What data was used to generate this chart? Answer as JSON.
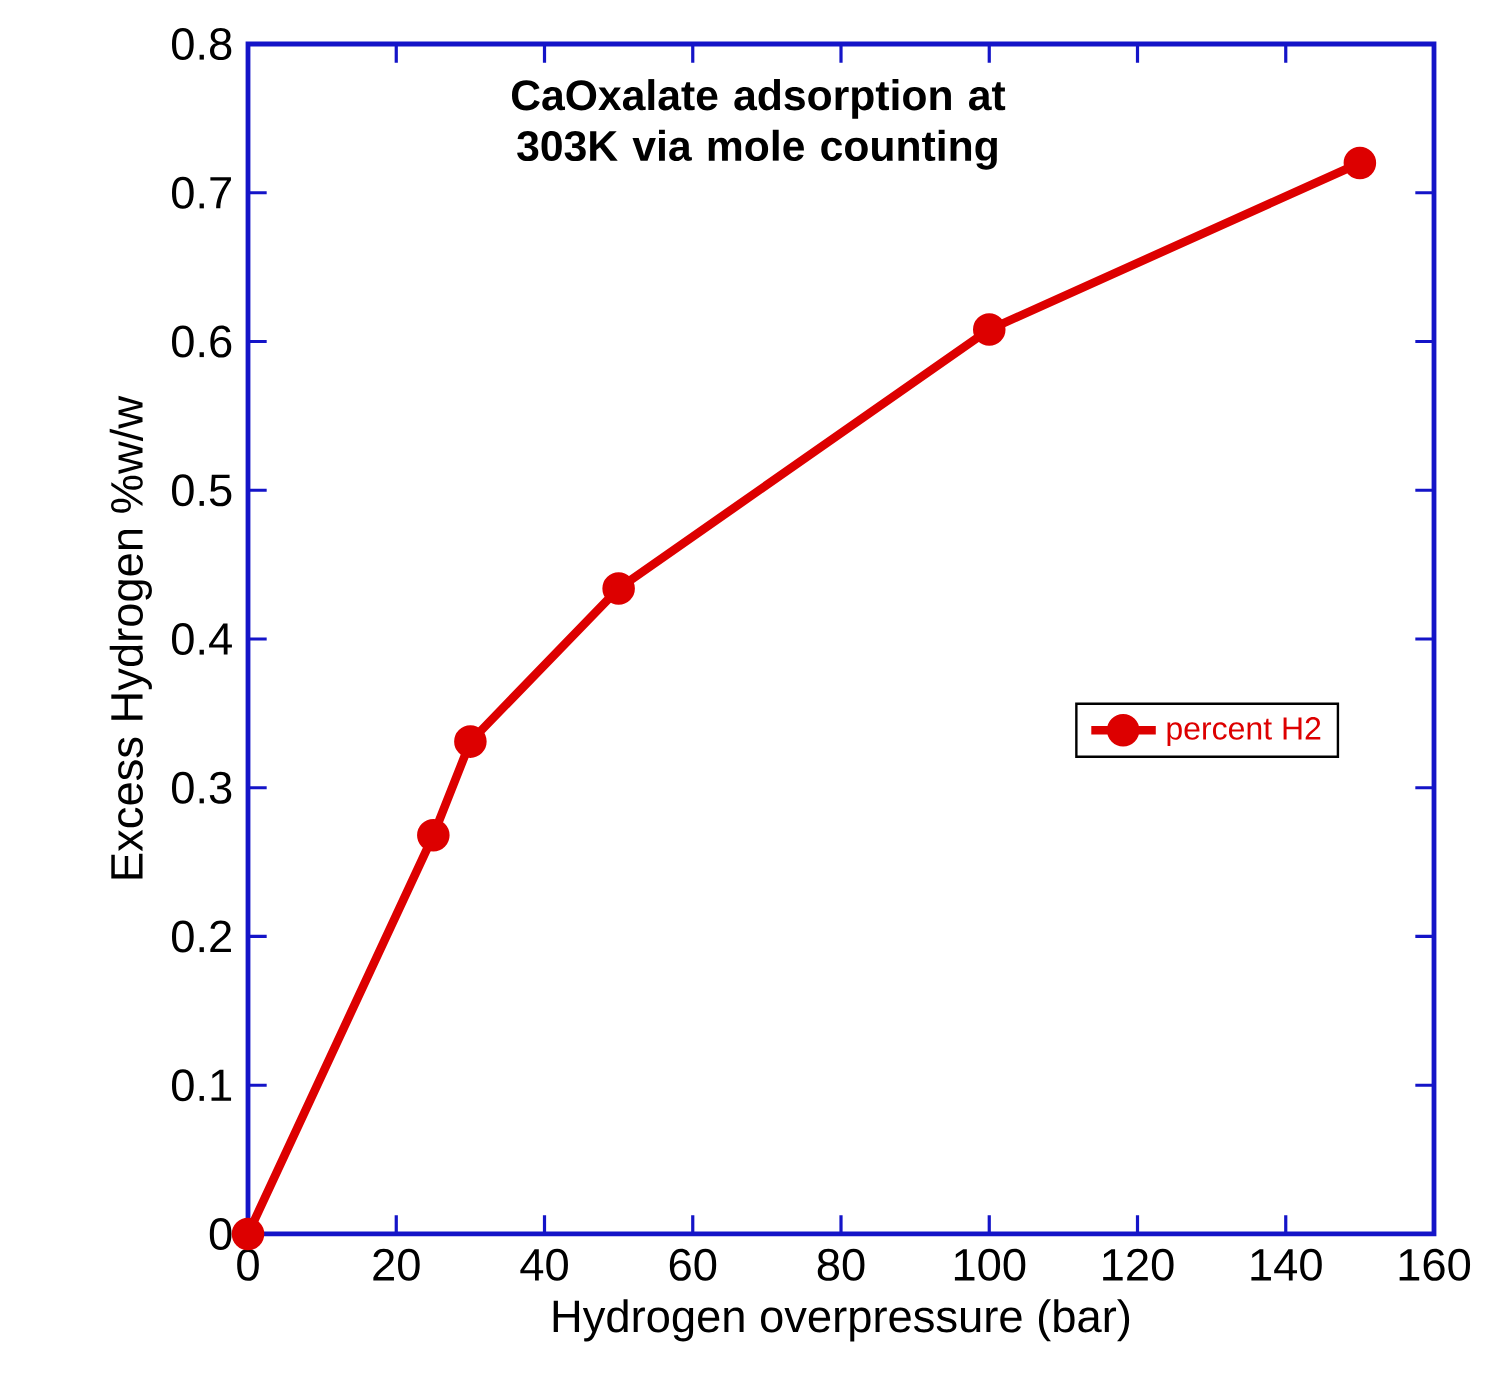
{
  "chart_data": {
    "type": "line",
    "title": "CaOxalate adsorption at 303K via mole counting",
    "xlabel": "Hydrogen overpressure (bar)",
    "ylabel": "Excess Hydrogen %w/w",
    "series": [
      {
        "name": "percent H2",
        "color": "#dd0000",
        "x": [
          0,
          25,
          30,
          50,
          100,
          150
        ],
        "values": [
          0,
          0.268,
          0.331,
          0.434,
          0.608,
          0.72
        ]
      }
    ],
    "xlim": [
      0,
      160
    ],
    "xticks": [
      0,
      20,
      40,
      60,
      80,
      100,
      120,
      140,
      160
    ],
    "ylim": [
      0,
      0.8
    ],
    "yticks": [
      0,
      0.1,
      0.2,
      0.3,
      0.4,
      0.5,
      0.6,
      0.7,
      0.8
    ],
    "grid": false,
    "legend": "right",
    "marker": "circle",
    "line_style": "solid"
  }
}
